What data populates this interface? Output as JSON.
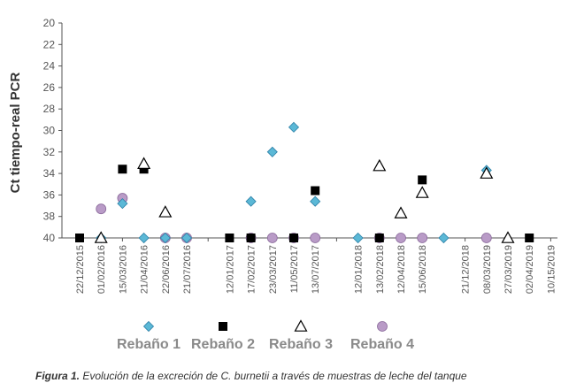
{
  "chart_data": {
    "type": "scatter",
    "ylabel": "Ct tiempo-real PCR",
    "y_ticks": [
      "20",
      "22",
      "24",
      "26",
      "28",
      "30",
      "32",
      "34",
      "36",
      "38",
      "40"
    ],
    "ylim": [
      20,
      40
    ],
    "y_inverted": true,
    "x_categories": [
      "22/12/2015",
      "01/02/2016",
      "15/03/2016",
      "21/04/2016",
      "22/06/2016",
      "21/07/2016",
      "",
      "12/01/2017",
      "17/02/2017",
      "23/03/2017",
      "11/05/2017",
      "13/07/2017",
      "",
      "12/01/2018",
      "13/02/2018",
      "12/04/2018",
      "15/06/2018",
      "",
      "21/12/2018",
      "08/03/2019",
      "27/03/2019",
      "02/04/2019",
      "10/15/2019"
    ],
    "legend": [
      "Rebaño 1",
      "Rebaño 2",
      "Rebaño 3",
      "Rebaño 4"
    ],
    "legend_position": "bottom",
    "series": [
      {
        "name": "Rebaño 1",
        "marker": "diamond",
        "color": "#5bb8d6",
        "points": [
          [
            1,
            40
          ],
          [
            2,
            36.8
          ],
          [
            3,
            40
          ],
          [
            4,
            40
          ],
          [
            5,
            40
          ],
          [
            8,
            36.6
          ],
          [
            9,
            32
          ],
          [
            10,
            29.7
          ],
          [
            11,
            36.6
          ],
          [
            13,
            40
          ],
          [
            17,
            40
          ],
          [
            19,
            33.7
          ]
        ]
      },
      {
        "name": "Rebaño 2",
        "marker": "square",
        "color": "#000000",
        "points": [
          [
            0,
            40
          ],
          [
            2,
            33.6
          ],
          [
            3,
            33.6
          ],
          [
            7,
            40
          ],
          [
            8,
            40
          ],
          [
            10,
            40
          ],
          [
            11,
            35.6
          ],
          [
            14,
            40
          ],
          [
            16,
            34.6
          ],
          [
            21,
            40
          ]
        ]
      },
      {
        "name": "Rebaño 3",
        "marker": "triangle",
        "color": "#000000",
        "points": [
          [
            1,
            40
          ],
          [
            3,
            33.1
          ],
          [
            4,
            37.6
          ],
          [
            14,
            33.3
          ],
          [
            15,
            37.7
          ],
          [
            16,
            35.8
          ],
          [
            19,
            34
          ],
          [
            20,
            40
          ]
        ]
      },
      {
        "name": "Rebaño 4",
        "marker": "circle",
        "color": "#b99bc7",
        "points": [
          [
            1,
            37.3
          ],
          [
            2,
            36.3
          ],
          [
            4,
            40
          ],
          [
            5,
            40
          ],
          [
            8,
            40
          ],
          [
            9,
            40
          ],
          [
            10,
            40
          ],
          [
            11,
            40
          ],
          [
            14,
            40
          ],
          [
            15,
            40
          ],
          [
            16,
            40
          ],
          [
            19,
            40
          ]
        ]
      }
    ]
  },
  "caption": {
    "bold": "Figura 1.",
    "text": " Evolución de la excreción de C. burnetii a través de muestras de leche del tanque"
  },
  "colors": {
    "axis": "#555555",
    "rebano1": "#5bb8d6",
    "rebano4": "#b99bc7",
    "legend_text": "#8a8a8a"
  }
}
